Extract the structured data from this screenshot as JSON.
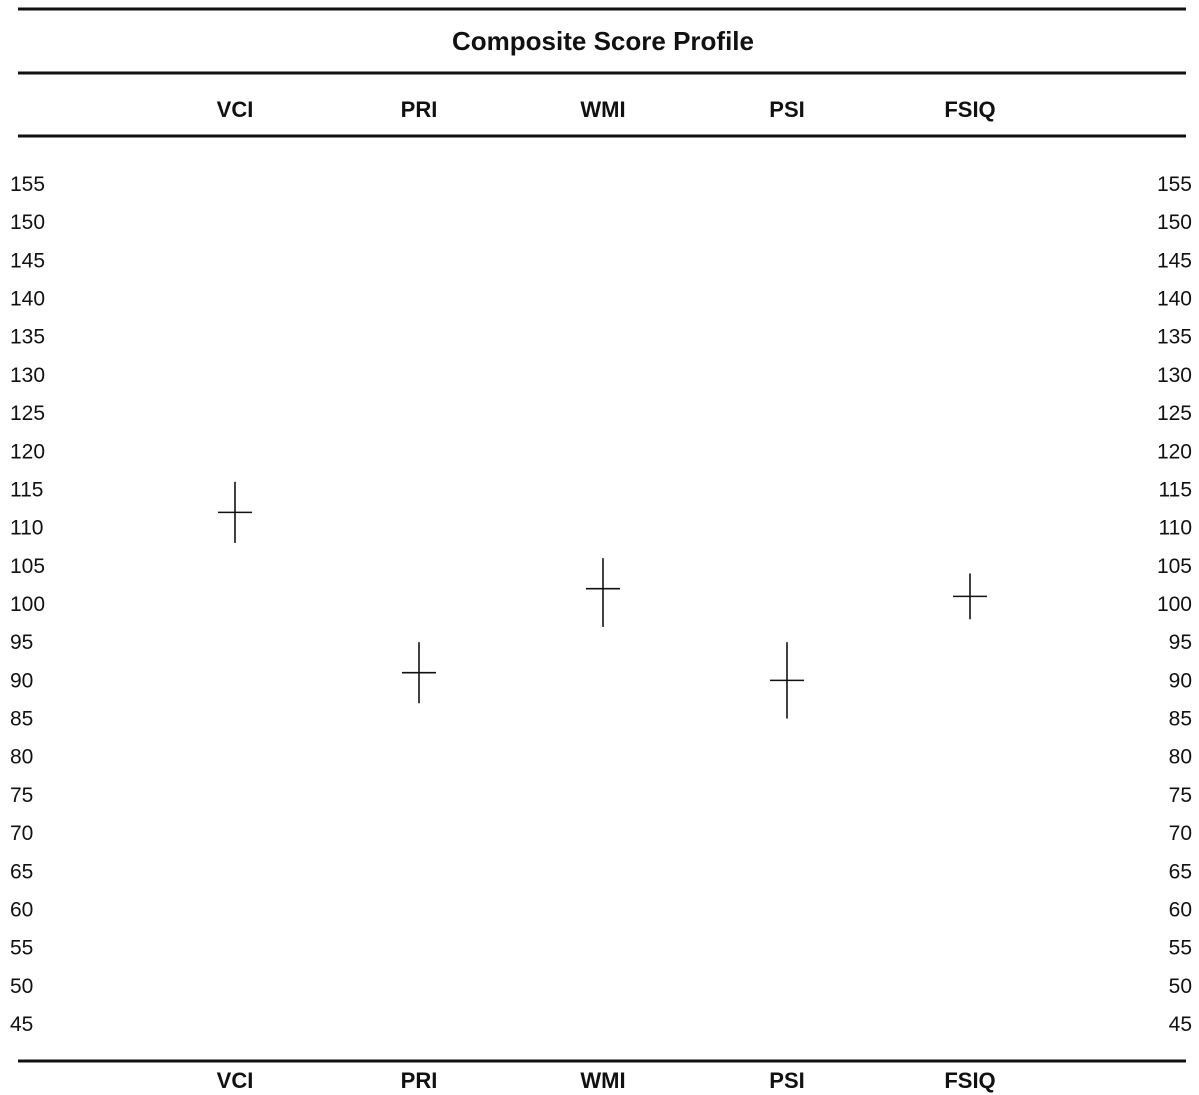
{
  "chart_data": {
    "type": "scatter",
    "title": "Composite Score Profile",
    "categories": [
      "VCI",
      "PRI",
      "WMI",
      "PSI",
      "FSIQ"
    ],
    "series": [
      {
        "values": [
          112,
          91,
          102,
          90,
          101
        ],
        "ci_low": [
          108,
          87,
          97,
          85,
          98
        ],
        "ci_high": [
          116,
          95,
          106,
          95,
          104
        ]
      }
    ],
    "yticks": [
      155,
      150,
      145,
      140,
      135,
      130,
      125,
      120,
      115,
      110,
      105,
      100,
      95,
      90,
      85,
      80,
      75,
      70,
      65,
      60,
      55,
      50,
      45
    ],
    "ylim": [
      45,
      155
    ],
    "grid": false,
    "legend": "none",
    "colors": {
      "rule": "#111111",
      "marker": "#111111"
    }
  }
}
